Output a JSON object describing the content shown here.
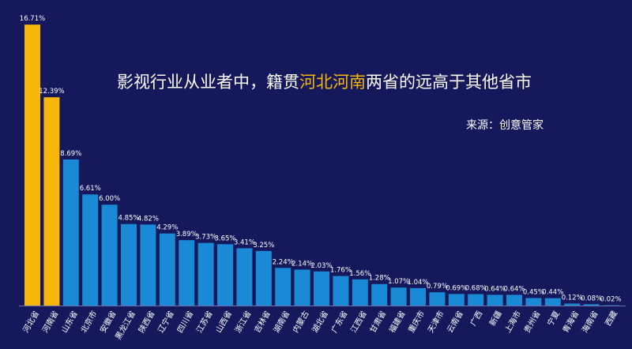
{
  "chart_data": {
    "type": "bar",
    "title_parts": [
      "影视行业从业者中，籍贯",
      "河北河南",
      "两省的远高于其他省市"
    ],
    "source": "来源：创意管家",
    "unit": "%",
    "ylim": [
      0,
      17
    ],
    "grid": false,
    "categories": [
      "河北省",
      "河南省",
      "山东省",
      "北京市",
      "安徽省",
      "黑龙江省",
      "陕西省",
      "辽宁省",
      "四川省",
      "江苏省",
      "山西省",
      "浙江省",
      "吉林省",
      "湖南省",
      "内蒙古",
      "湖北省",
      "广东省",
      "江西省",
      "甘肃省",
      "福建省",
      "重庆市",
      "天津市",
      "云南省",
      "广西",
      "新疆",
      "上海市",
      "贵州省",
      "宁夏",
      "青海省",
      "海南省",
      "西藏"
    ],
    "values": [
      16.71,
      12.39,
      8.69,
      6.61,
      6.0,
      4.85,
      4.82,
      4.29,
      3.89,
      3.73,
      3.65,
      3.41,
      3.25,
      2.24,
      2.14,
      2.03,
      1.76,
      1.56,
      1.28,
      1.07,
      1.04,
      0.79,
      0.69,
      0.68,
      0.64,
      0.64,
      0.45,
      0.44,
      0.12,
      0.08,
      0.02
    ],
    "labels": [
      "16.71%",
      "12.39%",
      "8.69%",
      "6.61%",
      "6.00%",
      "4.85%",
      "4.82%",
      "4.29%",
      "3.89%",
      "3.73%",
      "3.65%",
      "3.41%",
      "3.25%",
      "2.24%",
      "2.14%",
      "2.03%",
      "1.76%",
      "1.56%",
      "1.28%",
      "1.07%",
      "1.04%",
      "0.79%",
      "0.69%",
      "0.68%",
      "0.64%",
      "0.64%",
      "0.45%",
      "0.44%",
      "0.12%",
      "0.08%",
      "0.02%"
    ],
    "highlight": [
      0,
      1
    ],
    "colors": {
      "highlight": "#f6b70a",
      "normal": "#1a8ad6",
      "background": "#15185a",
      "axis": "#6a6fb0"
    }
  }
}
